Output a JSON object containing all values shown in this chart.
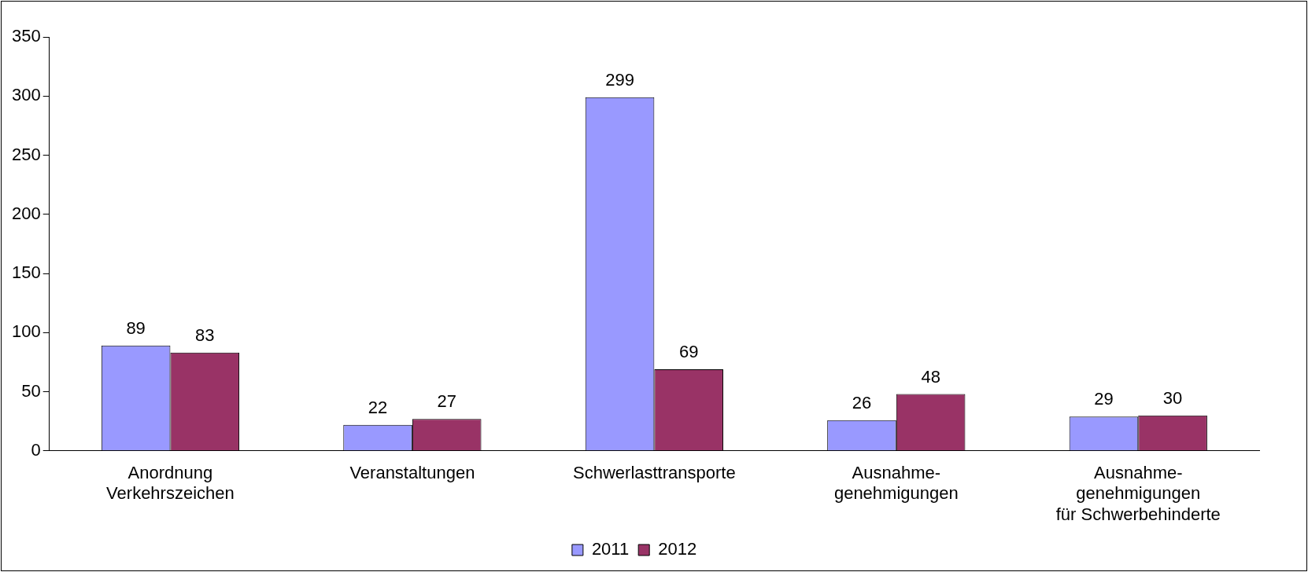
{
  "chart_data": {
    "type": "bar",
    "categories": [
      "Anordnung\nVerkehrszeichen",
      "Veranstaltungen",
      "Schwerlasttransporte",
      "Ausnahme-\ngenehmigungen",
      "Ausnahme-\ngenehmigungen\nfür Schwerbehinderte"
    ],
    "series": [
      {
        "name": "2011",
        "color": "#9999ff",
        "values": [
          89,
          22,
          299,
          26,
          29
        ]
      },
      {
        "name": "2012",
        "color": "#993366",
        "values": [
          83,
          27,
          69,
          48,
          30
        ]
      }
    ],
    "ylim": [
      0,
      350
    ],
    "yticks": [
      0,
      50,
      100,
      150,
      200,
      250,
      300,
      350
    ],
    "grid": false,
    "legend": "bottom",
    "data_labels": true
  }
}
